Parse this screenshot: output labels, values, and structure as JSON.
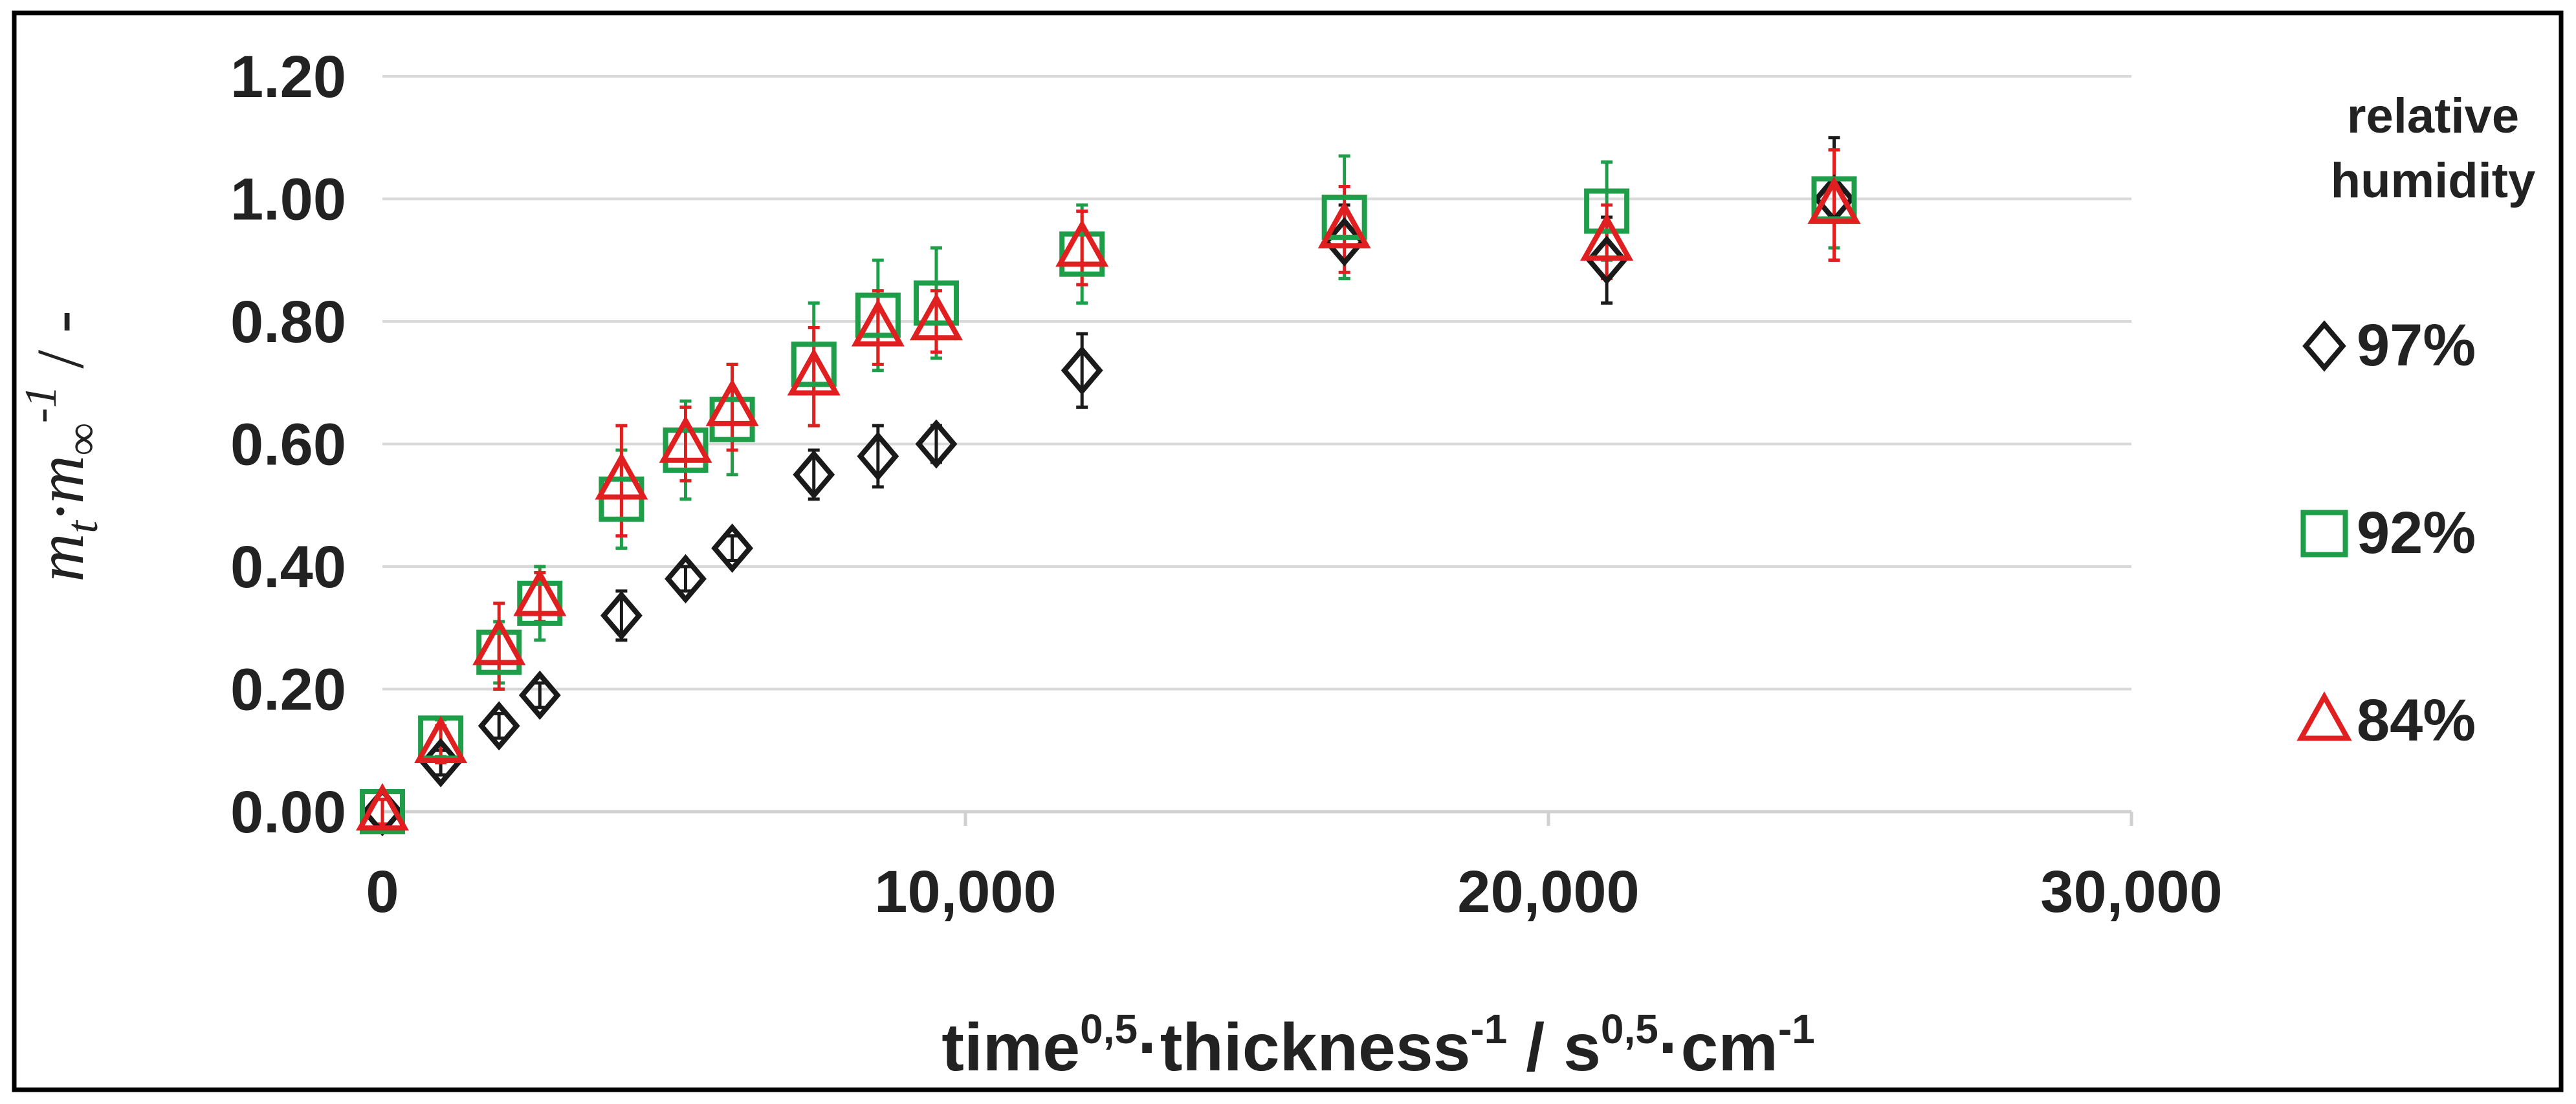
{
  "chart_data": {
    "type": "scatter",
    "title": "",
    "xlabel": {
      "parts": [
        "time",
        "0,5",
        "·thickness",
        "-1",
        " / s",
        "0,5",
        "·cm",
        "-1"
      ]
    },
    "ylabel": {
      "parts": [
        "m",
        "t",
        "·m",
        "∞",
        "-1",
        " / -"
      ]
    },
    "xlim": [
      0,
      30000
    ],
    "ylim": [
      0,
      1.2
    ],
    "x_ticks": [
      0,
      10000,
      20000,
      30000
    ],
    "x_tick_labels": [
      "0",
      "10,000",
      "20,000",
      "30,000"
    ],
    "y_ticks": [
      0,
      0.2,
      0.4,
      0.6,
      0.8,
      1.0,
      1.2
    ],
    "y_tick_labels": [
      "0.00",
      "0.20",
      "0.40",
      "0.60",
      "0.80",
      "1.00",
      "1.20"
    ],
    "grid": "horizontal",
    "legend": {
      "title_lines": [
        "relative",
        "humidity"
      ],
      "placement": "right"
    },
    "series": [
      {
        "name": "97%",
        "marker": "diamond",
        "color": "#1a1a1a",
        "points": [
          {
            "x": 0,
            "y": 0.0,
            "err": 0.02
          },
          {
            "x": 1000,
            "y": 0.08,
            "err": 0.02
          },
          {
            "x": 2000,
            "y": 0.14,
            "err": 0.02
          },
          {
            "x": 2700,
            "y": 0.19,
            "err": 0.02
          },
          {
            "x": 4100,
            "y": 0.32,
            "err": 0.04
          },
          {
            "x": 5200,
            "y": 0.38,
            "err": 0.02
          },
          {
            "x": 6000,
            "y": 0.43,
            "err": 0.02
          },
          {
            "x": 7400,
            "y": 0.55,
            "err": 0.04
          },
          {
            "x": 8500,
            "y": 0.58,
            "err": 0.05
          },
          {
            "x": 9500,
            "y": 0.6,
            "err": 0.03
          },
          {
            "x": 12000,
            "y": 0.72,
            "err": 0.06
          },
          {
            "x": 16500,
            "y": 0.93,
            "err": 0.06
          },
          {
            "x": 21000,
            "y": 0.9,
            "err": 0.07
          },
          {
            "x": 24900,
            "y": 1.0,
            "err": 0.1
          }
        ]
      },
      {
        "name": "92%",
        "marker": "square",
        "color": "#1f9e4a",
        "points": [
          {
            "x": 0,
            "y": 0.0,
            "err": 0.02
          },
          {
            "x": 1000,
            "y": 0.12,
            "err": 0.03
          },
          {
            "x": 2000,
            "y": 0.26,
            "err": 0.05
          },
          {
            "x": 2700,
            "y": 0.34,
            "err": 0.06
          },
          {
            "x": 4100,
            "y": 0.51,
            "err": 0.08
          },
          {
            "x": 5200,
            "y": 0.59,
            "err": 0.08
          },
          {
            "x": 6000,
            "y": 0.64,
            "err": 0.09
          },
          {
            "x": 7400,
            "y": 0.73,
            "err": 0.1
          },
          {
            "x": 8500,
            "y": 0.81,
            "err": 0.09
          },
          {
            "x": 9500,
            "y": 0.83,
            "err": 0.09
          },
          {
            "x": 12000,
            "y": 0.91,
            "err": 0.08
          },
          {
            "x": 16500,
            "y": 0.97,
            "err": 0.1
          },
          {
            "x": 21000,
            "y": 0.98,
            "err": 0.08
          },
          {
            "x": 24900,
            "y": 1.0,
            "err": 0.08
          }
        ]
      },
      {
        "name": "84%",
        "marker": "triangle",
        "color": "#e02020",
        "points": [
          {
            "x": 0,
            "y": 0.0,
            "err": 0.02
          },
          {
            "x": 1000,
            "y": 0.11,
            "err": 0.03
          },
          {
            "x": 2000,
            "y": 0.27,
            "err": 0.07
          },
          {
            "x": 2700,
            "y": 0.35,
            "err": 0.04
          },
          {
            "x": 4100,
            "y": 0.54,
            "err": 0.09
          },
          {
            "x": 5200,
            "y": 0.6,
            "err": 0.06
          },
          {
            "x": 6000,
            "y": 0.66,
            "err": 0.07
          },
          {
            "x": 7400,
            "y": 0.71,
            "err": 0.08
          },
          {
            "x": 8500,
            "y": 0.79,
            "err": 0.06
          },
          {
            "x": 9500,
            "y": 0.8,
            "err": 0.05
          },
          {
            "x": 12000,
            "y": 0.92,
            "err": 0.06
          },
          {
            "x": 16500,
            "y": 0.95,
            "err": 0.07
          },
          {
            "x": 21000,
            "y": 0.93,
            "err": 0.06
          },
          {
            "x": 24900,
            "y": 0.99,
            "err": 0.09
          }
        ]
      }
    ]
  },
  "colors": {
    "grid": "#d9d9d9",
    "axis": "#d0d0d0",
    "frame": "#000000",
    "text": "#222222"
  }
}
